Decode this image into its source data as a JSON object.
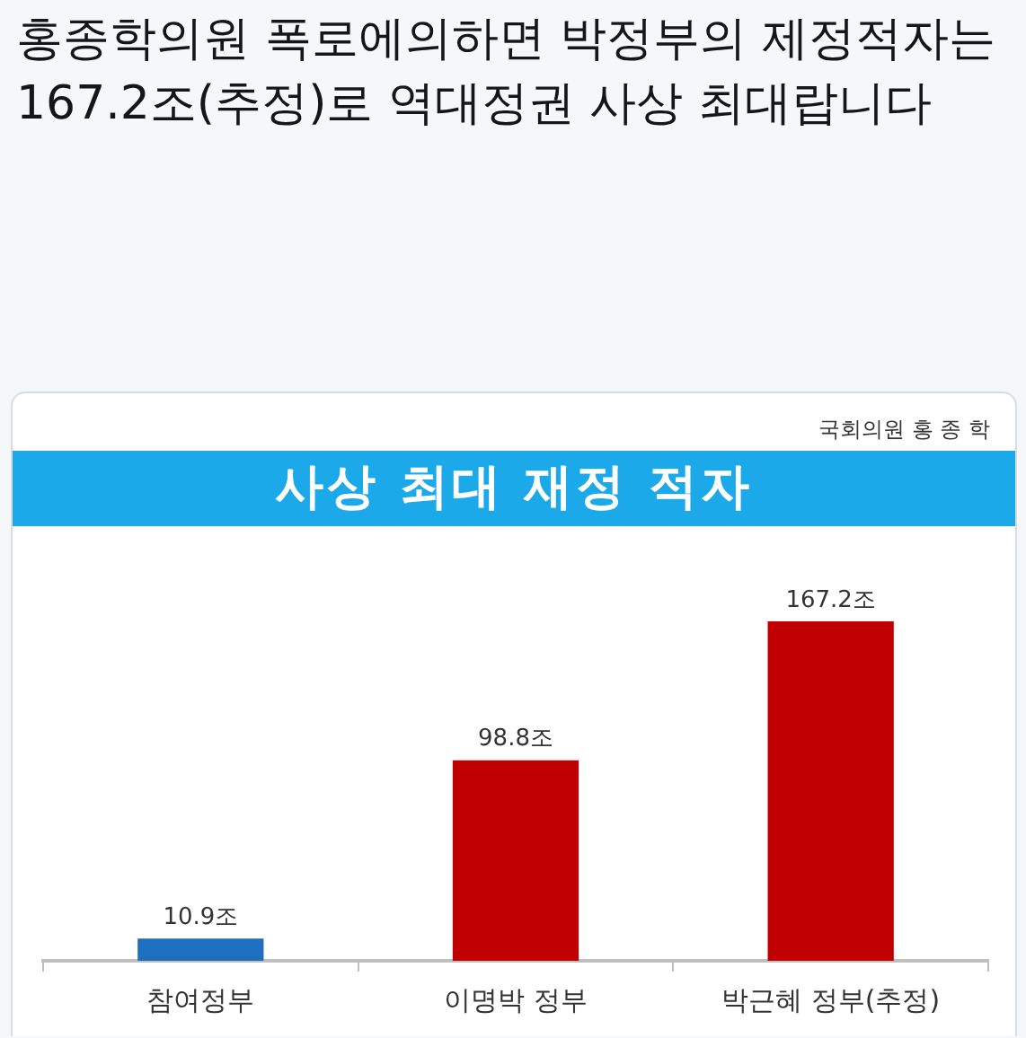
{
  "chart_data": {
    "type": "bar",
    "title": "사상 최대 재정 적자",
    "annotations": [
      "홍종학의원 폭로에의하면 박정부의 제정적자는 167.2조(추정)로 역대정권 사상 최대랍니다",
      "국회의원 홍 종 학"
    ],
    "categories": [
      "참여정부",
      "이명박 정부",
      "박근혜 정부(추정)"
    ],
    "values": [
      10.9,
      98.8,
      167.2
    ],
    "colors": [
      "#1f6fbf",
      "#c00000",
      "#c00000"
    ],
    "value_labels": [
      "10.9조",
      "98.8조",
      "167.2조"
    ]
  }
}
